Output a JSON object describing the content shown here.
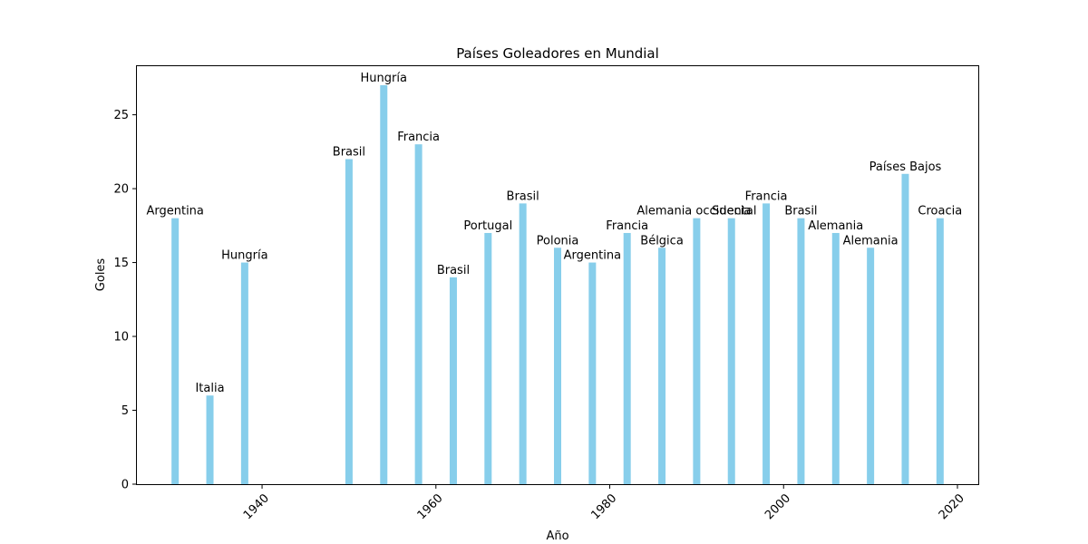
{
  "chart_data": {
    "type": "bar",
    "title": "Países Goleadores en Mundial",
    "xlabel": "Año",
    "ylabel": "Goles",
    "x": [
      1930,
      1934,
      1938,
      1950,
      1954,
      1958,
      1962,
      1966,
      1970,
      1974,
      1978,
      1982,
      1986,
      1990,
      1994,
      1998,
      2002,
      2006,
      2010,
      2014,
      2018
    ],
    "values": [
      18,
      6,
      15,
      22,
      27,
      23,
      14,
      17,
      19,
      16,
      15,
      17,
      16,
      18,
      18,
      19,
      18,
      17,
      16,
      21,
      18
    ],
    "labels": [
      "Argentina",
      "Italia",
      "Hungría",
      "Brasil",
      "Hungría",
      "Francia",
      "Brasil",
      "Portugal",
      "Brasil",
      "Polonia",
      "Argentina",
      "Francia",
      "Bélgica",
      "Alemania occidental",
      "Suecia",
      "Francia",
      "Brasil",
      "Alemania",
      "Alemania",
      "Países Bajos",
      "Croacia"
    ],
    "xlim": [
      1925.6,
      2022.4
    ],
    "ylim": [
      0,
      28.35
    ],
    "xticks": [
      1940,
      1960,
      1980,
      2000,
      2020
    ],
    "yticks": [
      0,
      5,
      10,
      15,
      20,
      25
    ],
    "bar_color": "#87ceeb",
    "grid": false,
    "legend": "none"
  }
}
